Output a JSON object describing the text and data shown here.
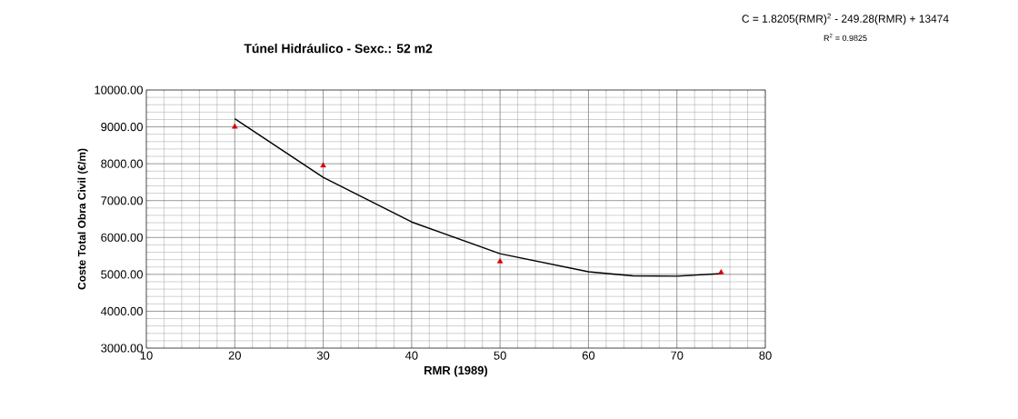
{
  "chart_data": {
    "type": "scatter",
    "title": "Túnel Hidráulico - Sexc.: 52 m2",
    "xlabel": "RMR (1989)",
    "ylabel": "Coste Total Obra Civil (€/m)",
    "annotations": [
      "C = 1.8205(RMR)$^{2}$ - 249.28(RMR) + 13474",
      "R$^{2}$ = 0.9825"
    ],
    "series": [
      {
        "type": "scatter",
        "color": "#d40000",
        "marker": "triangle",
        "x": [
          20,
          30,
          50,
          75
        ],
        "values": [
          9000,
          7950,
          5350,
          5050
        ]
      },
      {
        "type": "line",
        "color": "#000000",
        "marker": "none",
        "line_style": "solid",
        "x": [
          20,
          30,
          40,
          50,
          60,
          65,
          70,
          75
        ],
        "values": [
          9220,
          7630,
          6420,
          5560,
          5070,
          4960,
          4950,
          5020
        ]
      }
    ],
    "xlim": [
      10,
      80
    ],
    "xticks": [
      10,
      20,
      30,
      40,
      50,
      60,
      70,
      80
    ],
    "ylim": [
      3000,
      10000
    ],
    "yticks": [
      {
        "value": 3000,
        "label": "3000.00"
      },
      {
        "value": 4000,
        "label": "4000.00"
      },
      {
        "value": 5000,
        "label": "5000.00"
      },
      {
        "value": 6000,
        "label": "6000.00"
      },
      {
        "value": 7000,
        "label": "7000.00"
      },
      {
        "value": 8000,
        "label": "8000.00"
      },
      {
        "value": 9000,
        "label": "9000.00"
      },
      {
        "value": 10000,
        "label": "10000.00"
      }
    ],
    "grid": true
  }
}
